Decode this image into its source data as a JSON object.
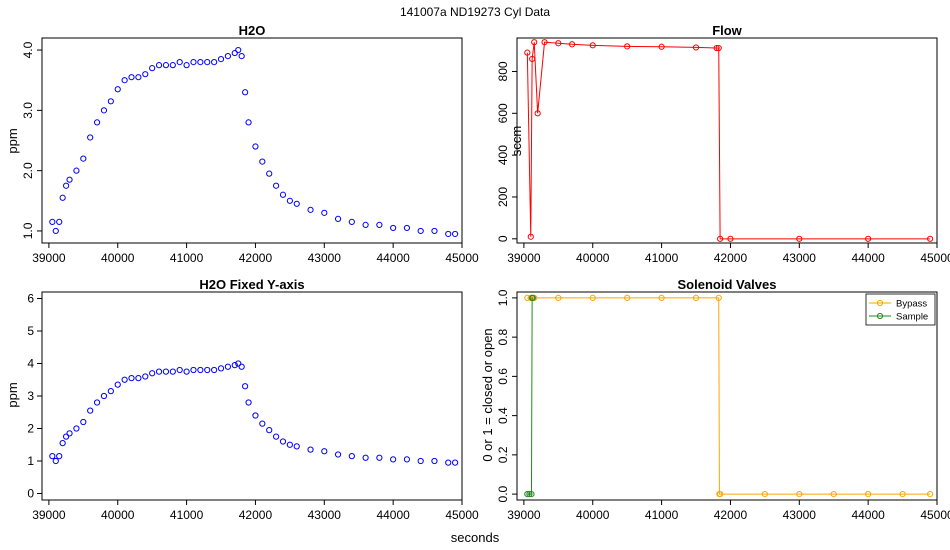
{
  "figure": {
    "suptitle": "141007a   ND19273  Cyl Data",
    "xlabel": "seconds"
  },
  "colors": {
    "h2o": "#0000ff",
    "flow": "#ff0000",
    "bypass": "#ffa500",
    "sample": "#228b22"
  },
  "chart_data": [
    {
      "type": "scatter",
      "title": "H2O",
      "ylabel": "ppm",
      "xlim": [
        38900,
        45000
      ],
      "ylim": [
        0.8,
        4.2
      ],
      "xticks": [
        39000,
        40000,
        41000,
        42000,
        43000,
        44000,
        45000
      ],
      "yticks": [
        1.0,
        2.0,
        3.0,
        4.0
      ],
      "ytick_labels": [
        "1.0",
        "2.0",
        "3.0",
        "4.0"
      ],
      "ytick_orientation": "vertical",
      "color": "h2o",
      "x": [
        39050,
        39100,
        39150,
        39200,
        39250,
        39300,
        39400,
        39500,
        39600,
        39700,
        39800,
        39900,
        40000,
        40100,
        40200,
        40300,
        40400,
        40500,
        40600,
        40700,
        40800,
        40900,
        41000,
        41100,
        41200,
        41300,
        41400,
        41500,
        41600,
        41700,
        41750,
        41800,
        41850,
        41900,
        42000,
        42100,
        42200,
        42300,
        42400,
        42500,
        42600,
        42800,
        43000,
        43200,
        43400,
        43600,
        43800,
        44000,
        44200,
        44400,
        44600,
        44800,
        44900
      ],
      "y": [
        1.15,
        1.0,
        1.15,
        1.55,
        1.75,
        1.85,
        2.0,
        2.2,
        2.55,
        2.8,
        3.0,
        3.15,
        3.35,
        3.5,
        3.55,
        3.55,
        3.6,
        3.7,
        3.75,
        3.75,
        3.75,
        3.8,
        3.75,
        3.8,
        3.8,
        3.8,
        3.8,
        3.85,
        3.9,
        3.95,
        4.0,
        3.9,
        3.3,
        2.8,
        2.4,
        2.15,
        1.95,
        1.75,
        1.6,
        1.5,
        1.45,
        1.35,
        1.3,
        1.2,
        1.15,
        1.1,
        1.1,
        1.05,
        1.05,
        1.0,
        1.0,
        0.95,
        0.95
      ]
    },
    {
      "type": "scatter",
      "title": "Flow",
      "ylabel": "sccm",
      "xlim": [
        38900,
        45000
      ],
      "ylim": [
        -20,
        960
      ],
      "xticks": [
        39000,
        40000,
        41000,
        42000,
        43000,
        44000,
        45000
      ],
      "yticks": [
        0,
        200,
        400,
        600,
        800
      ],
      "ytick_labels": [
        "0",
        "200",
        "400",
        "600",
        "800"
      ],
      "ytick_orientation": "vertical",
      "color": "flow",
      "x": [
        39050,
        39100,
        39120,
        39150,
        39200,
        39300,
        39500,
        39700,
        40000,
        40500,
        41000,
        41500,
        41800,
        41830,
        41850,
        42000,
        43000,
        44000,
        44900
      ],
      "y": [
        890,
        10,
        860,
        940,
        600,
        940,
        935,
        930,
        925,
        920,
        918,
        915,
        912,
        912,
        0,
        0,
        0,
        0,
        0
      ]
    },
    {
      "type": "scatter",
      "title": "H2O Fixed Y-axis",
      "ylabel": "ppm",
      "xlim": [
        38900,
        45000
      ],
      "ylim": [
        -0.2,
        6.2
      ],
      "xticks": [
        39000,
        40000,
        41000,
        42000,
        43000,
        44000,
        45000
      ],
      "yticks": [
        0,
        1,
        2,
        3,
        4,
        5,
        6
      ],
      "ytick_labels": [
        "0",
        "1",
        "2",
        "3",
        "4",
        "5",
        "6"
      ],
      "ytick_orientation": "horizontal",
      "color": "h2o",
      "x": [
        39050,
        39100,
        39150,
        39200,
        39250,
        39300,
        39400,
        39500,
        39600,
        39700,
        39800,
        39900,
        40000,
        40100,
        40200,
        40300,
        40400,
        40500,
        40600,
        40700,
        40800,
        40900,
        41000,
        41100,
        41200,
        41300,
        41400,
        41500,
        41600,
        41700,
        41750,
        41800,
        41850,
        41900,
        42000,
        42100,
        42200,
        42300,
        42400,
        42500,
        42600,
        42800,
        43000,
        43200,
        43400,
        43600,
        43800,
        44000,
        44200,
        44400,
        44600,
        44800,
        44900
      ],
      "y": [
        1.15,
        1.0,
        1.15,
        1.55,
        1.75,
        1.85,
        2.0,
        2.2,
        2.55,
        2.8,
        3.0,
        3.15,
        3.35,
        3.5,
        3.55,
        3.55,
        3.6,
        3.7,
        3.75,
        3.75,
        3.75,
        3.8,
        3.75,
        3.8,
        3.8,
        3.8,
        3.8,
        3.85,
        3.9,
        3.95,
        4.0,
        3.9,
        3.3,
        2.8,
        2.4,
        2.15,
        1.95,
        1.75,
        1.6,
        1.5,
        1.45,
        1.35,
        1.3,
        1.2,
        1.15,
        1.1,
        1.1,
        1.05,
        1.05,
        1.0,
        1.0,
        0.95,
        0.95
      ]
    },
    {
      "type": "line",
      "title": "Solenoid Valves",
      "ylabel": "0 or 1 = closed or open",
      "xlim": [
        38900,
        45000
      ],
      "ylim": [
        -0.03,
        1.03
      ],
      "xticks": [
        39000,
        40000,
        41000,
        42000,
        43000,
        44000,
        45000
      ],
      "yticks": [
        0.0,
        0.2,
        0.4,
        0.6,
        0.8,
        1.0
      ],
      "ytick_labels": [
        "0.0",
        "0.2",
        "0.4",
        "0.6",
        "0.8",
        "1.0"
      ],
      "ytick_orientation": "vertical",
      "legend": {
        "position": "top-right"
      },
      "series": [
        {
          "name": "Bypass",
          "color": "bypass",
          "x": [
            39050,
            39100,
            39150,
            39500,
            40000,
            40500,
            41000,
            41500,
            41830,
            41840,
            41850,
            42500,
            43000,
            43500,
            44000,
            44500,
            44900
          ],
          "y": [
            1,
            1,
            1,
            1,
            1,
            1,
            1,
            1,
            1,
            0,
            0,
            0,
            0,
            0,
            0,
            0,
            0
          ]
        },
        {
          "name": "Sample",
          "color": "sample",
          "x": [
            39050,
            39080,
            39110,
            39120,
            39130
          ],
          "y": [
            0,
            0,
            0,
            1,
            1
          ]
        }
      ]
    }
  ]
}
